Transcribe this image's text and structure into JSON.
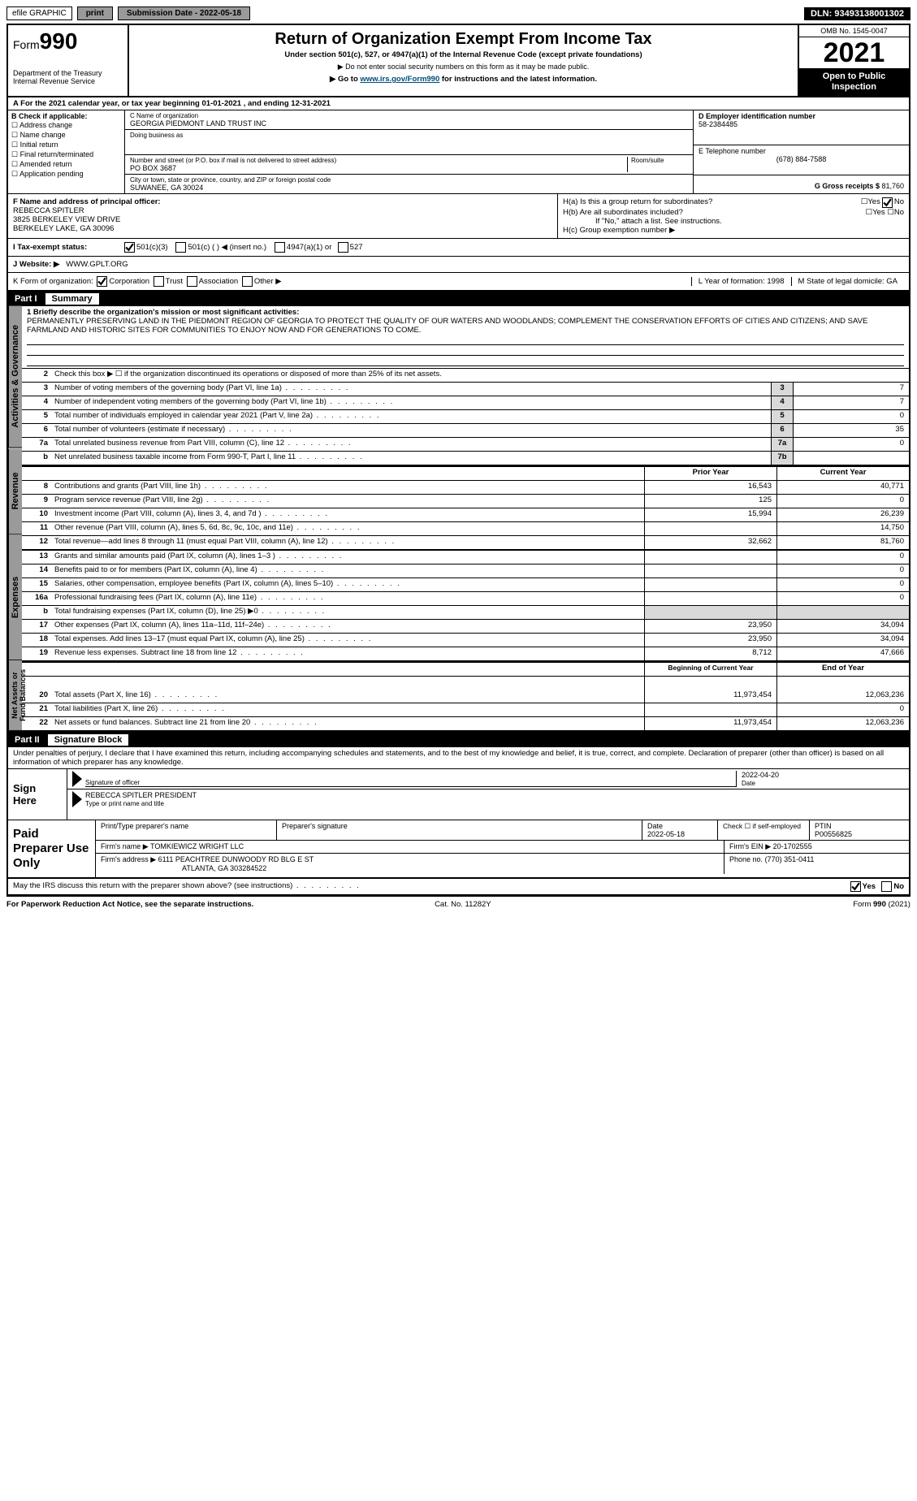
{
  "topbar": {
    "efile": "efile GRAPHIC",
    "print": "print",
    "sub_label": "Submission Date - 2022-05-18",
    "dln": "DLN: 93493138001302"
  },
  "header": {
    "form_small": "Form",
    "form_num": "990",
    "title": "Return of Organization Exempt From Income Tax",
    "sub1": "Under section 501(c), 527, or 4947(a)(1) of the Internal Revenue Code (except private foundations)",
    "sub2": "▶ Do not enter social security numbers on this form as it may be made public.",
    "sub3_pre": "▶ Go to ",
    "sub3_link": "www.irs.gov/Form990",
    "sub3_post": " for instructions and the latest information.",
    "dept": "Department of the Treasury\nInternal Revenue Service",
    "omb": "OMB No. 1545-0047",
    "year": "2021",
    "open": "Open to Public Inspection"
  },
  "rowA": {
    "line": "A For the 2021 calendar year, or tax year beginning 01-01-2021   , and ending 12-31-2021",
    "b_hdr": "B Check if applicable:",
    "b_items": [
      "Address change",
      "Name change",
      "Initial return",
      "Final return/terminated",
      "Amended return",
      "Application pending"
    ],
    "c_name_label": "C Name of organization",
    "c_name": "GEORGIA PIEDMONT LAND TRUST INC",
    "dba_label": "Doing business as",
    "dba": "",
    "street_label": "Number and street (or P.O. box if mail is not delivered to street address)",
    "room_label": "Room/suite",
    "street": "PO BOX 3687",
    "city_label": "City or town, state or province, country, and ZIP or foreign postal code",
    "city": "SUWANEE, GA  30024",
    "d_label": "D Employer identification number",
    "d_val": "58-2384485",
    "e_label": "E Telephone number",
    "e_val": "(678) 884-7588",
    "g_label": "G Gross receipts $",
    "g_val": "81,760"
  },
  "rowF": {
    "f_label": "F Name and address of principal officer:",
    "f_name": "REBECCA SPITLER",
    "f_addr1": "3825 BERKELEY VIEW DRIVE",
    "f_addr2": "BERKELEY LAKE, GA  30096",
    "ha": "H(a)  Is this a group return for subordinates?",
    "hb": "H(b)  Are all subordinates included?",
    "hb_note": "If \"No,\" attach a list. See instructions.",
    "hc": "H(c)  Group exemption number ▶"
  },
  "rowI": {
    "label": "I   Tax-exempt status:",
    "a": "501(c)(3)",
    "b": "501(c) (     ) ◀ (insert no.)",
    "c": "4947(a)(1) or",
    "d": "527"
  },
  "rowJ": {
    "label": "J   Website: ▶",
    "val": "WWW.GPLT.ORG"
  },
  "rowK": {
    "label": "K Form of organization:",
    "opts": [
      "Corporation",
      "Trust",
      "Association",
      "Other ▶"
    ],
    "l_label": "L Year of formation: 1998",
    "m_label": "M State of legal domicile: GA"
  },
  "parts": {
    "p1": "Part I",
    "p1t": "Summary",
    "p2": "Part II",
    "p2t": "Signature Block"
  },
  "summary": {
    "tabs": [
      "Activities & Governance",
      "Revenue",
      "Expenses",
      "Net Assets or Fund Balances"
    ],
    "line1_label": "1  Briefly describe the organization's mission or most significant activities:",
    "mission": "PERMANENTLY PRESERVING LAND IN THE PIEDMONT REGION OF GEORGIA TO PROTECT THE QUALITY OF OUR WATERS AND WOODLANDS; COMPLEMENT THE CONSERVATION EFFORTS OF CITIES AND CITIZENS; AND SAVE FARMLAND AND HISTORIC SITES FOR COMMUNITIES TO ENJOY NOW AND FOR GENERATIONS TO COME.",
    "line2": "Check this box ▶ ☐  if the organization discontinued its operations or disposed of more than 25% of its net assets.",
    "gov_lines": [
      {
        "n": "3",
        "d": "Number of voting members of the governing body (Part VI, line 1a)",
        "box": "3",
        "v": "7"
      },
      {
        "n": "4",
        "d": "Number of independent voting members of the governing body (Part VI, line 1b)",
        "box": "4",
        "v": "7"
      },
      {
        "n": "5",
        "d": "Total number of individuals employed in calendar year 2021 (Part V, line 2a)",
        "box": "5",
        "v": "0"
      },
      {
        "n": "6",
        "d": "Total number of volunteers (estimate if necessary)",
        "box": "6",
        "v": "35"
      },
      {
        "n": "7a",
        "d": "Total unrelated business revenue from Part VIII, column (C), line 12",
        "box": "7a",
        "v": "0"
      },
      {
        "n": "b",
        "d": "Net unrelated business taxable income from Form 990-T, Part I, line 11",
        "box": "7b",
        "v": ""
      }
    ],
    "col_prior": "Prior Year",
    "col_curr": "Current Year",
    "rev_lines": [
      {
        "n": "8",
        "d": "Contributions and grants (Part VIII, line 1h)",
        "p": "16,543",
        "c": "40,771"
      },
      {
        "n": "9",
        "d": "Program service revenue (Part VIII, line 2g)",
        "p": "125",
        "c": "0"
      },
      {
        "n": "10",
        "d": "Investment income (Part VIII, column (A), lines 3, 4, and 7d )",
        "p": "15,994",
        "c": "26,239"
      },
      {
        "n": "11",
        "d": "Other revenue (Part VIII, column (A), lines 5, 6d, 8c, 9c, 10c, and 11e)",
        "p": "",
        "c": "14,750"
      },
      {
        "n": "12",
        "d": "Total revenue—add lines 8 through 11 (must equal Part VIII, column (A), line 12)",
        "p": "32,662",
        "c": "81,760"
      }
    ],
    "exp_lines": [
      {
        "n": "13",
        "d": "Grants and similar amounts paid (Part IX, column (A), lines 1–3 )",
        "p": "",
        "c": "0"
      },
      {
        "n": "14",
        "d": "Benefits paid to or for members (Part IX, column (A), line 4)",
        "p": "",
        "c": "0"
      },
      {
        "n": "15",
        "d": "Salaries, other compensation, employee benefits (Part IX, column (A), lines 5–10)",
        "p": "",
        "c": "0"
      },
      {
        "n": "16a",
        "d": "Professional fundraising fees (Part IX, column (A), line 11e)",
        "p": "",
        "c": "0"
      },
      {
        "n": "b",
        "d": "Total fundraising expenses (Part IX, column (D), line 25) ▶0",
        "p": "GRAY",
        "c": "GRAY"
      },
      {
        "n": "17",
        "d": "Other expenses (Part IX, column (A), lines 11a–11d, 11f–24e)",
        "p": "23,950",
        "c": "34,094"
      },
      {
        "n": "18",
        "d": "Total expenses. Add lines 13–17 (must equal Part IX, column (A), line 25)",
        "p": "23,950",
        "c": "34,094"
      },
      {
        "n": "19",
        "d": "Revenue less expenses. Subtract line 18 from line 12",
        "p": "8,712",
        "c": "47,666"
      }
    ],
    "col_beg": "Beginning of Current Year",
    "col_end": "End of Year",
    "net_lines": [
      {
        "n": "20",
        "d": "Total assets (Part X, line 16)",
        "p": "11,973,454",
        "c": "12,063,236"
      },
      {
        "n": "21",
        "d": "Total liabilities (Part X, line 26)",
        "p": "",
        "c": "0"
      },
      {
        "n": "22",
        "d": "Net assets or fund balances. Subtract line 21 from line 20",
        "p": "11,973,454",
        "c": "12,063,236"
      }
    ]
  },
  "sig": {
    "decl": "Under penalties of perjury, I declare that I have examined this return, including accompanying schedules and statements, and to the best of my knowledge and belief, it is true, correct, and complete. Declaration of preparer (other than officer) is based on all information of which preparer has any knowledge.",
    "sign_here": "Sign Here",
    "sig_officer": "Signature of officer",
    "date": "Date",
    "date_val": "2022-04-20",
    "name_title": "REBECCA SPITLER  PRESIDENT",
    "name_label": "Type or print name and title"
  },
  "paid": {
    "label": "Paid Preparer Use Only",
    "h1": "Print/Type preparer's name",
    "h2": "Preparer's signature",
    "h3": "Date",
    "h3v": "2022-05-18",
    "h4": "Check ☐ if self-employed",
    "h5": "PTIN",
    "h5v": "P00556825",
    "firm_label": "Firm's name   ▶",
    "firm": "TOMKIEWICZ WRIGHT LLC",
    "ein_label": "Firm's EIN ▶",
    "ein": "20-1702555",
    "addr_label": "Firm's address ▶",
    "addr1": "6111 PEACHTREE DUNWOODY RD BLG E ST",
    "addr2": "ATLANTA, GA  303284522",
    "phone_label": "Phone no.",
    "phone": "(770) 351-0411"
  },
  "may_irs": "May the IRS discuss this return with the preparer shown above? (see instructions)",
  "footer": {
    "left": "For Paperwork Reduction Act Notice, see the separate instructions.",
    "mid": "Cat. No. 11282Y",
    "right": "Form 990 (2021)"
  }
}
